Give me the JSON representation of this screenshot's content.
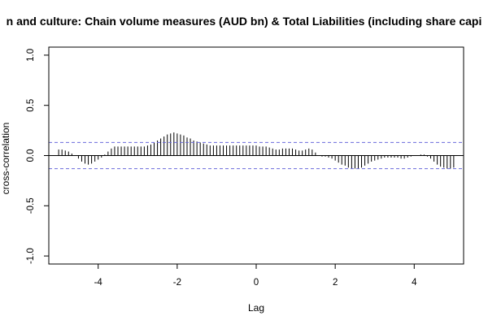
{
  "chart_data": {
    "type": "ccf",
    "title": "n and culture: Chain volume measures (AUD bn) & Total Liabilities (including share capi",
    "xlabel": "Lag",
    "ylabel": "cross-correlation",
    "xlim": [
      -5.25,
      5.25
    ],
    "ylim": [
      -1.08,
      1.08
    ],
    "x_ticks": [
      -4,
      -2,
      0,
      2,
      4
    ],
    "x_tick_labels": [
      "-4",
      "-2",
      "0",
      "2",
      "4"
    ],
    "y_ticks": [
      -1.0,
      -0.5,
      0.0,
      0.5,
      1.0
    ],
    "y_tick_labels": [
      "-1.0",
      "-0.5",
      "0.0",
      "0.5",
      "1.0"
    ],
    "confidence_bound": 0.13,
    "lag_start": -5.0,
    "lag_step": 0.0833333,
    "values": [
      0.06,
      0.06,
      0.05,
      0.04,
      0.02,
      0.0,
      -0.03,
      -0.06,
      -0.08,
      -0.09,
      -0.08,
      -0.06,
      -0.04,
      -0.02,
      0.01,
      0.04,
      0.07,
      0.09,
      0.09,
      0.09,
      0.09,
      0.09,
      0.09,
      0.09,
      0.09,
      0.09,
      0.09,
      0.1,
      0.11,
      0.13,
      0.15,
      0.17,
      0.19,
      0.21,
      0.22,
      0.23,
      0.22,
      0.21,
      0.2,
      0.18,
      0.17,
      0.15,
      0.14,
      0.13,
      0.12,
      0.11,
      0.1,
      0.1,
      0.1,
      0.1,
      0.1,
      0.1,
      0.1,
      0.1,
      0.1,
      0.1,
      0.1,
      0.1,
      0.1,
      0.1,
      0.1,
      0.09,
      0.09,
      0.09,
      0.08,
      0.07,
      0.06,
      0.06,
      0.07,
      0.07,
      0.07,
      0.07,
      0.06,
      0.05,
      0.05,
      0.06,
      0.07,
      0.06,
      0.03,
      0.0,
      -0.01,
      -0.01,
      -0.02,
      -0.03,
      -0.05,
      -0.07,
      -0.09,
      -0.1,
      -0.12,
      -0.13,
      -0.13,
      -0.13,
      -0.12,
      -0.1,
      -0.08,
      -0.06,
      -0.05,
      -0.04,
      -0.03,
      -0.02,
      -0.02,
      -0.02,
      -0.02,
      -0.02,
      -0.03,
      -0.03,
      -0.02,
      -0.01,
      0.0,
      0.0,
      0.01,
      0.01,
      -0.01,
      -0.03,
      -0.06,
      -0.09,
      -0.11,
      -0.12,
      -0.13,
      -0.13,
      -0.12
    ],
    "colors": {
      "bars": "#000000",
      "confidence": "#6a6adb",
      "zero_line": "#000000",
      "frame": "#000000"
    },
    "grid": false,
    "legend": "none"
  }
}
